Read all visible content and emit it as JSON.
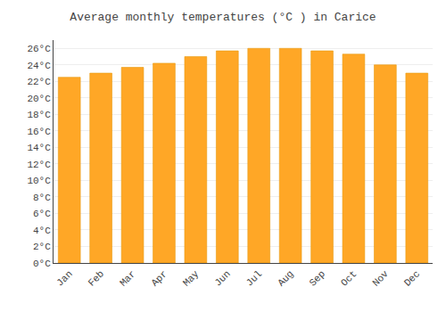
{
  "chart_data": {
    "type": "bar",
    "title": "Average monthly temperatures (°C ) in Carice",
    "categories": [
      "Jan",
      "Feb",
      "Mar",
      "Apr",
      "May",
      "Jun",
      "Jul",
      "Aug",
      "Sep",
      "Oct",
      "Nov",
      "Dec"
    ],
    "values": [
      22.5,
      23.0,
      23.7,
      24.2,
      25.0,
      25.7,
      26.0,
      26.0,
      25.7,
      25.3,
      24.0,
      23.0
    ],
    "color": "#FFA726",
    "ylim": [
      0,
      27
    ],
    "yticks": [
      {
        "value": 0,
        "label": "0°C"
      },
      {
        "value": 2,
        "label": "2°C"
      },
      {
        "value": 4,
        "label": "4°C"
      },
      {
        "value": 6,
        "label": "6°C"
      },
      {
        "value": 8,
        "label": "8°C"
      },
      {
        "value": 10,
        "label": "10°C"
      },
      {
        "value": 12,
        "label": "12°C"
      },
      {
        "value": 14,
        "label": "14°C"
      },
      {
        "value": 16,
        "label": "16°C"
      },
      {
        "value": 18,
        "label": "18°C"
      },
      {
        "value": 20,
        "label": "20°C"
      },
      {
        "value": 22,
        "label": "22°C"
      },
      {
        "value": 24,
        "label": "24°C"
      },
      {
        "value": 26,
        "label": "26°C"
      }
    ],
    "grid": true
  }
}
